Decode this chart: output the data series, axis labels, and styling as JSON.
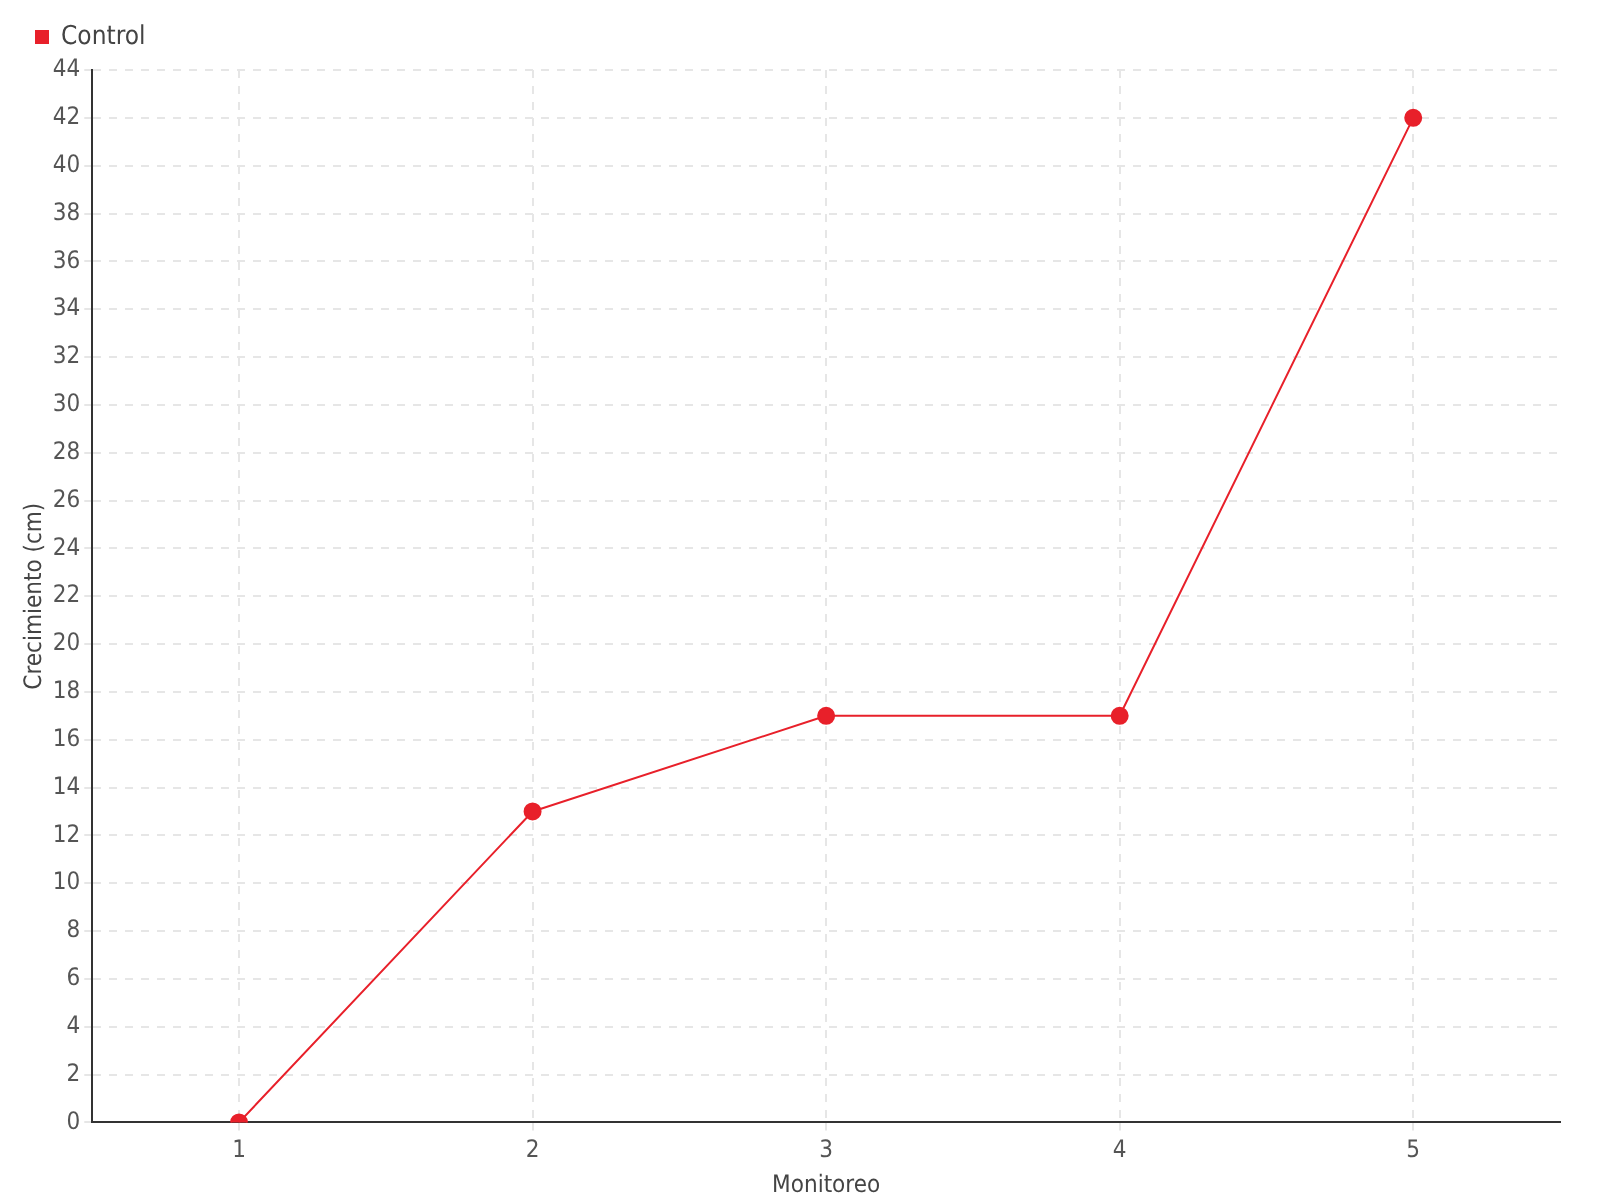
{
  "chart_data": {
    "type": "line",
    "xlabel": "Monitoreo",
    "ylabel": "Crecimiento (cm)",
    "categories": [
      "1",
      "2",
      "3",
      "4",
      "5"
    ],
    "series": [
      {
        "name": "Control",
        "color": "#e8202a",
        "values": [
          0,
          13,
          17,
          17,
          42
        ]
      }
    ],
    "ylim": [
      0,
      44
    ],
    "yticks": [
      0,
      2,
      4,
      6,
      8,
      10,
      12,
      14,
      16,
      18,
      20,
      22,
      24,
      26,
      28,
      30,
      32,
      34,
      36,
      38,
      40,
      42,
      44
    ],
    "grid": true,
    "legend": "top left",
    "marker": "circle",
    "line_style": "solid"
  }
}
